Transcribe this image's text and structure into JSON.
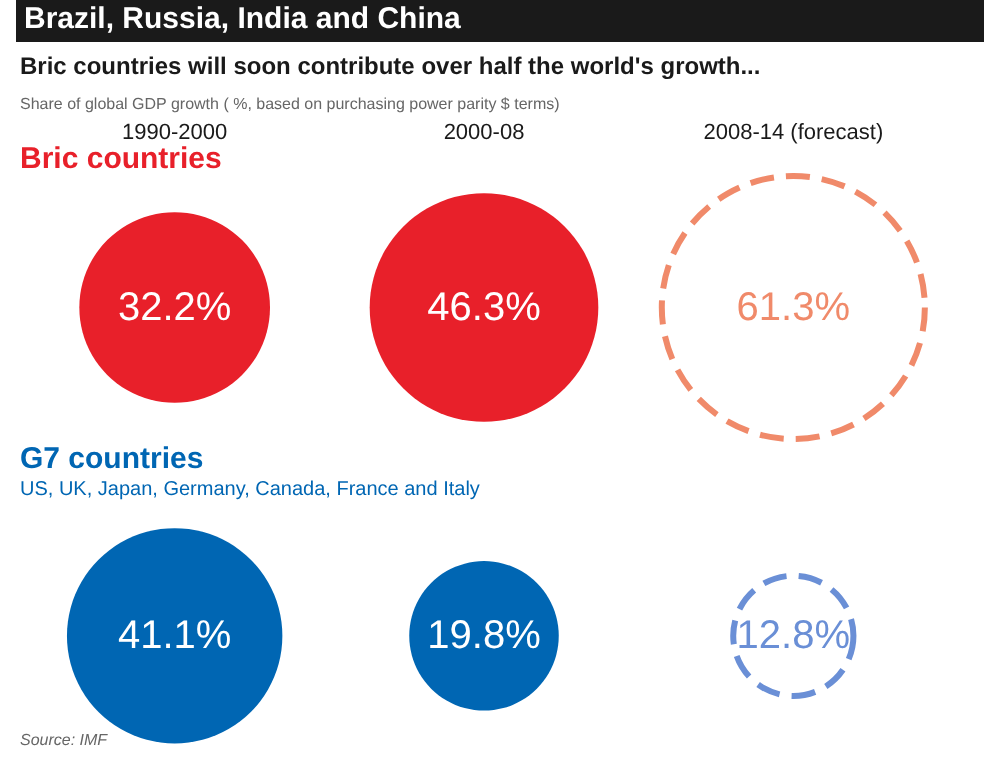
{
  "chart_data": {
    "type": "other",
    "title": "Brazil, Russia, India and China",
    "subtitle": "Bric countries will soon contribute over half the world's growth...",
    "categories": [
      "1990-2000",
      "2000-08",
      "2008-14 (forecast)"
    ],
    "series": [
      {
        "name": "Bric countries",
        "color": "#e8202a",
        "values": [
          32.2,
          46.3,
          null
        ],
        "value_labels": [
          "32.2%",
          "46.3%",
          null
        ]
      },
      {
        "color": "#f08a6a",
        "line_style": "dashed",
        "values": [
          null,
          null,
          61.3
        ],
        "value_labels": [
          null,
          null,
          "61.3%"
        ]
      },
      {
        "name": "G7 countries",
        "color": "#0066b3",
        "values": [
          41.1,
          19.8,
          null
        ],
        "value_labels": [
          "41.1%",
          "19.8%",
          null
        ]
      },
      {
        "color": "#6a8fd6",
        "line_style": "dashed",
        "values": [
          null,
          null,
          12.8
        ],
        "value_labels": [
          null,
          null,
          "12.8%"
        ]
      }
    ],
    "annotations": [
      "Share of global GDP growth ( %, based on purchasing power parity $ terms)",
      "US, UK, Japan, Germany, Canada, France and Italy",
      "Source: IMF"
    ]
  }
}
